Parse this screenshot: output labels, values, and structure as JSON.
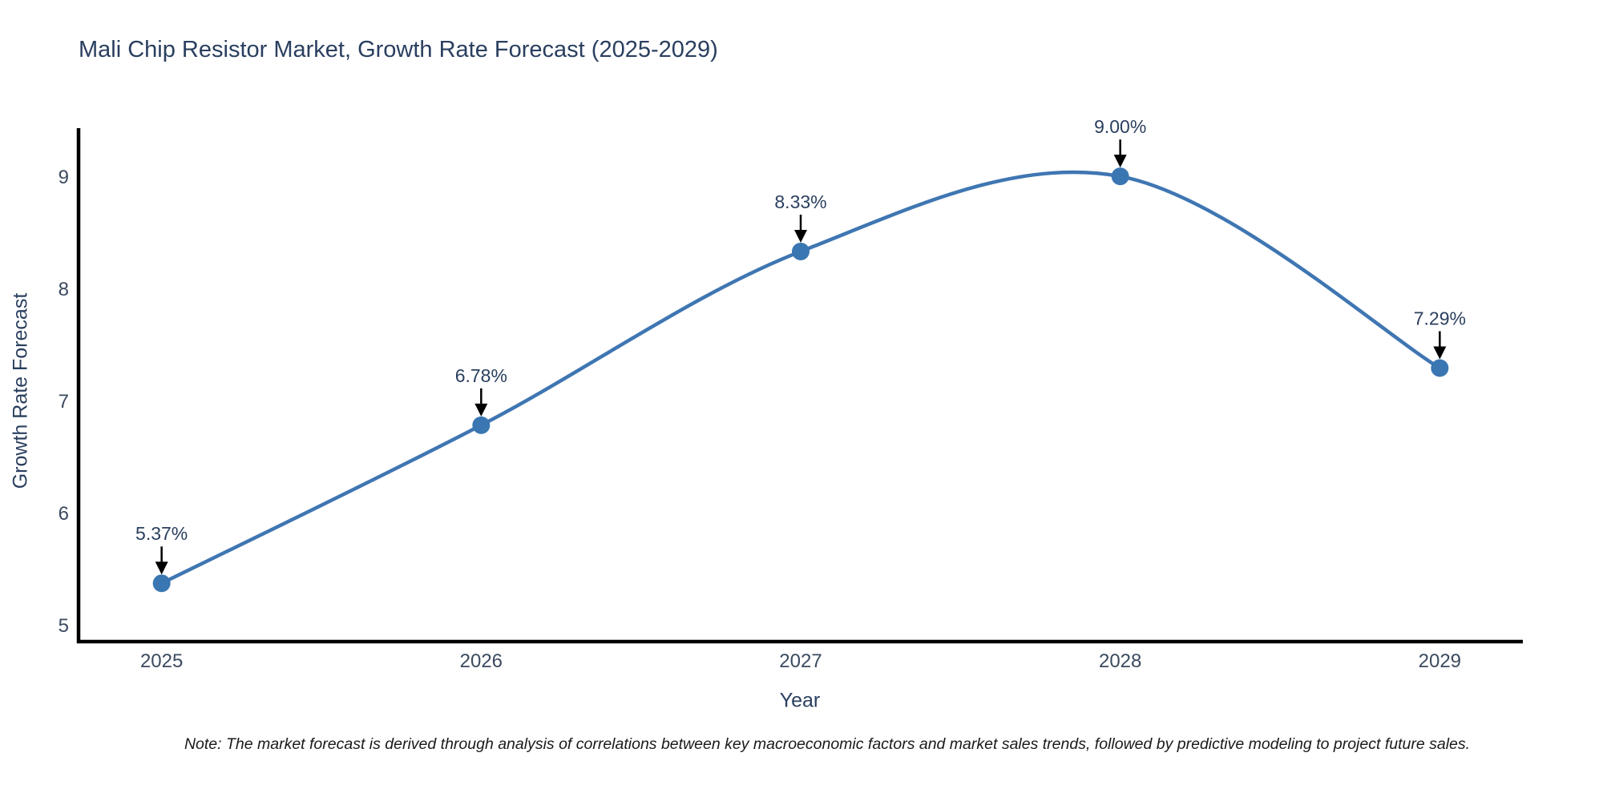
{
  "page": {
    "note": "Note: The market forecast is derived through analysis of correlations between key macroeconomic factors and market sales trends, followed by predictive modeling to project future sales."
  },
  "chart_data": {
    "type": "line",
    "title": "Mali Chip Resistor Market, Growth Rate Forecast (2025-2029)",
    "xlabel": "Year",
    "ylabel": "Growth Rate Forecast",
    "x": [
      2025,
      2026,
      2027,
      2028,
      2029
    ],
    "y": [
      5.37,
      6.78,
      8.33,
      9.0,
      7.29
    ],
    "point_labels": [
      "5.37%",
      "6.78%",
      "8.33%",
      "9.00%",
      "7.29%"
    ],
    "x_ticks": [
      2025,
      2026,
      2027,
      2028,
      2029
    ],
    "y_ticks": [
      5,
      6,
      7,
      8,
      9
    ],
    "xlim": [
      2024.74,
      2029.26
    ],
    "ylim": [
      4.85,
      9.43
    ],
    "line_shape": "spline",
    "grid": false,
    "legend": "none",
    "colors": {
      "line": "#3f76b2",
      "marker": "#3a76b2",
      "axis": "#000000",
      "text": "#2a3f5f",
      "annotation_arrow": "#000000"
    }
  }
}
